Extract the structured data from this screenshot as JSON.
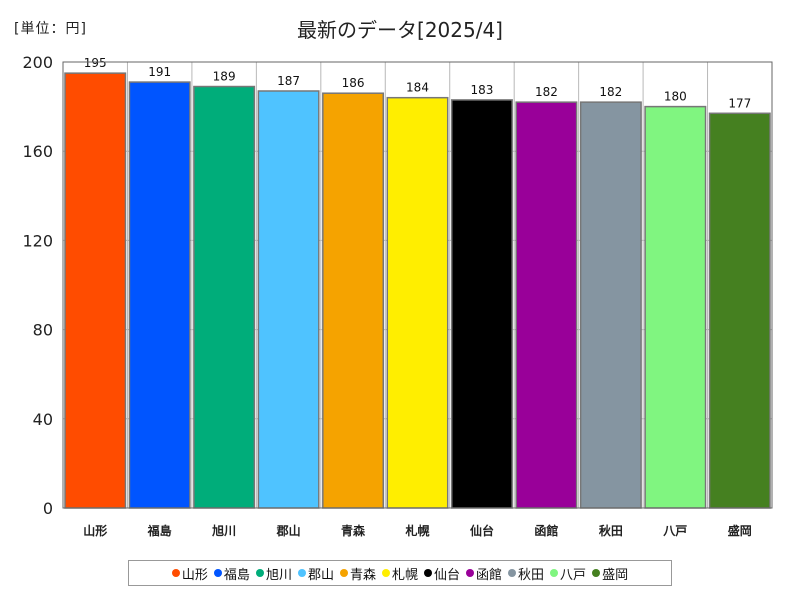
{
  "chart_data": {
    "type": "bar",
    "title": "最新のデータ[2025/4]",
    "unit_label": "[単位：円]",
    "categories": [
      "山形",
      "福島",
      "旭川",
      "郡山",
      "青森",
      "札幌",
      "仙台",
      "函館",
      "秋田",
      "八戸",
      "盛岡"
    ],
    "values": [
      195,
      191,
      189,
      187,
      186,
      184,
      183,
      182,
      182,
      180,
      177
    ],
    "colors": [
      "#ff4c00",
      "#0055ff",
      "#00ad7a",
      "#4fc3ff",
      "#f5a300",
      "#ffee00",
      "#000000",
      "#990099",
      "#8595a1",
      "#80f580",
      "#458020"
    ],
    "ylim": [
      0,
      200
    ],
    "yticks": [
      0,
      40,
      80,
      120,
      160,
      200
    ],
    "xlabel": "",
    "ylabel": "",
    "grid": true,
    "legend_position": "bottom"
  }
}
